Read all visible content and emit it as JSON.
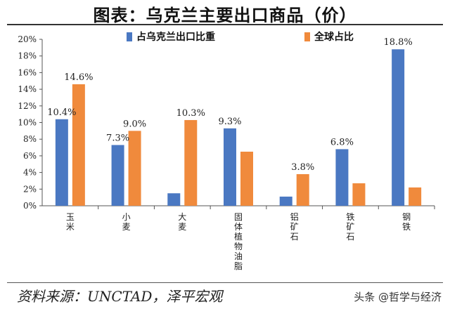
{
  "title": "图表：乌克兰主要出口商品（价）",
  "source": "资料来源：UNCTAD，泽平宏观",
  "watermark": "头条 @哲学与经济",
  "colors": {
    "series_share": "#4a78c2",
    "series_global": "#f08a3c"
  },
  "chart_data": {
    "type": "bar",
    "title": "图表：乌克兰主要出口商品（价）",
    "categories": [
      "玉米",
      "小麦",
      "大麦",
      "固体植物油脂",
      "铝矿石",
      "铁矿石",
      "钢铁"
    ],
    "series": [
      {
        "name": "占乌克兰出口比重",
        "values": [
          10.4,
          7.3,
          1.5,
          9.3,
          1.1,
          6.8,
          18.8
        ]
      },
      {
        "name": "全球占比",
        "values": [
          14.6,
          9.0,
          10.3,
          6.5,
          3.8,
          2.7,
          2.2
        ]
      }
    ],
    "data_labels": {
      "series0": [
        "10.4%",
        "7.3%",
        "",
        "9.3%",
        "",
        "6.8%",
        "18.8%"
      ],
      "series1": [
        "14.6%",
        "9.0%",
        "10.3%",
        "",
        "3.8%",
        "",
        ""
      ]
    },
    "y_ticks": [
      "0%",
      "2%",
      "4%",
      "6%",
      "8%",
      "10%",
      "12%",
      "14%",
      "16%",
      "18%",
      "20%"
    ],
    "ylim": [
      0,
      20
    ],
    "grid": false,
    "legend_position": "top"
  }
}
